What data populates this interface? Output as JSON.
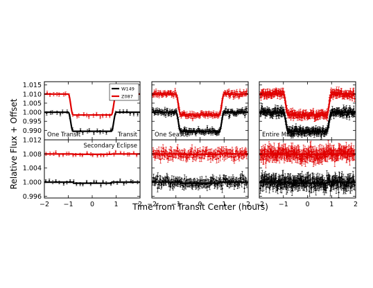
{
  "figure": {
    "ylabel": "Relative Flux + Offset",
    "xlabel": "Time from Transit Center (hours)"
  },
  "legend": {
    "entries": [
      {
        "label": "W149",
        "color": "#000000"
      },
      {
        "label": "Z087",
        "color": "#e00000"
      }
    ]
  },
  "chart_data": {
    "type": "scatter",
    "layout": "3 columns x 2 rows of panels, shared x axis per column",
    "x_range": [
      -2,
      2
    ],
    "x_ticks": [
      -2,
      -1,
      0,
      1,
      2
    ],
    "x_tick_labels": [
      "−2",
      "−1",
      "0",
      "1",
      "2"
    ],
    "columns": [
      {
        "label": "One Transit",
        "extra_label": "Transit",
        "noise": {
          "top": 0.0011,
          "bottom": 0.0005
        },
        "npoints": 28
      },
      {
        "label": "One Season",
        "noise": {
          "top": 0.0013,
          "bottom": 0.0012
        },
        "npoints": 150
      },
      {
        "label": "Entire Mission",
        "noise": {
          "top": 0.0018,
          "bottom": 0.0016
        },
        "npoints": 260
      }
    ],
    "top_row": {
      "label": "Transit",
      "ylim": [
        0.9848,
        1.0168
      ],
      "yticks": [
        0.99,
        0.995,
        1.0,
        1.005,
        1.01,
        1.015
      ],
      "ytick_labels": [
        "0.990",
        "0.995",
        "1.000",
        "1.005",
        "1.010",
        "1.015"
      ],
      "series": [
        {
          "name": "W149",
          "color": "#000000",
          "offset": 1.0,
          "depth": 0.0105
        },
        {
          "name": "Z087",
          "color": "#e00000",
          "offset": 1.01,
          "depth": 0.0115
        }
      ]
    },
    "bottom_row": {
      "label": "Secondary Eclipse",
      "ylim": [
        0.9955,
        1.012
      ],
      "yticks": [
        0.996,
        1.0,
        1.004,
        1.008,
        1.012
      ],
      "ytick_labels": [
        "0.996",
        "1.000",
        "1.004",
        "1.008",
        "1.012"
      ],
      "series": [
        {
          "name": "W149",
          "color": "#000000",
          "offset": 1.0,
          "depth": 0.0003
        },
        {
          "name": "Z087",
          "color": "#e00000",
          "offset": 1.008,
          "depth": 0.0001
        }
      ]
    },
    "transit_model": {
      "half_width_hours": 0.9,
      "ingress_hours": 0.2
    }
  }
}
